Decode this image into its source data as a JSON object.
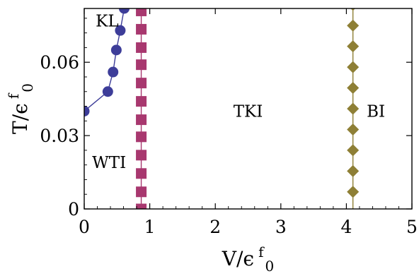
{
  "chart_data": {
    "type": "scatter",
    "xlabel": {
      "main": "V/",
      "eps": "ϵ",
      "sup": "f",
      "sub": "0"
    },
    "ylabel": {
      "main": "T/",
      "eps": "ϵ",
      "sup": "f",
      "sub": "0"
    },
    "xlim": [
      0,
      5
    ],
    "ylim": [
      0,
      0.082
    ],
    "xticks": [
      {
        "value": 0,
        "label": "0"
      },
      {
        "value": 1,
        "label": "1"
      },
      {
        "value": 2,
        "label": "2"
      },
      {
        "value": 3,
        "label": "3"
      },
      {
        "value": 4,
        "label": "4"
      },
      {
        "value": 5,
        "label": "5"
      }
    ],
    "yticks": [
      {
        "value": 0,
        "label": "0"
      },
      {
        "value": 0.03,
        "label": "0.03"
      },
      {
        "value": 0.06,
        "label": "0.06"
      }
    ],
    "series": [
      {
        "marker": "circle",
        "color": "#3d3d99",
        "points": [
          {
            "x": 0.0,
            "y": 0.04
          },
          {
            "x": 0.36,
            "y": 0.048
          },
          {
            "x": 0.44,
            "y": 0.056
          },
          {
            "x": 0.49,
            "y": 0.065
          },
          {
            "x": 0.55,
            "y": 0.073
          },
          {
            "x": 0.61,
            "y": 0.082
          }
        ]
      },
      {
        "marker": "square",
        "color": "#a8386f",
        "x_constant": 0.87,
        "y_values": [
          0.0,
          0.007,
          0.0145,
          0.022,
          0.0295,
          0.0365,
          0.044,
          0.0515,
          0.059,
          0.066,
          0.0735,
          0.081
        ]
      },
      {
        "marker": "diamond",
        "color": "#8e7f35",
        "x_constant": 4.1,
        "y_values": [
          0.007,
          0.0155,
          0.024,
          0.0325,
          0.041,
          0.0495,
          0.058,
          0.0665,
          0.075,
          0.0835
        ]
      }
    ],
    "annotations": [
      {
        "text": "KL",
        "x": 0.35,
        "y": 0.077
      },
      {
        "text": "TKI",
        "x": 2.5,
        "y": 0.04
      },
      {
        "text": "BI",
        "x": 4.45,
        "y": 0.04
      },
      {
        "text": "WTI",
        "x": 0.38,
        "y": 0.019
      }
    ]
  }
}
